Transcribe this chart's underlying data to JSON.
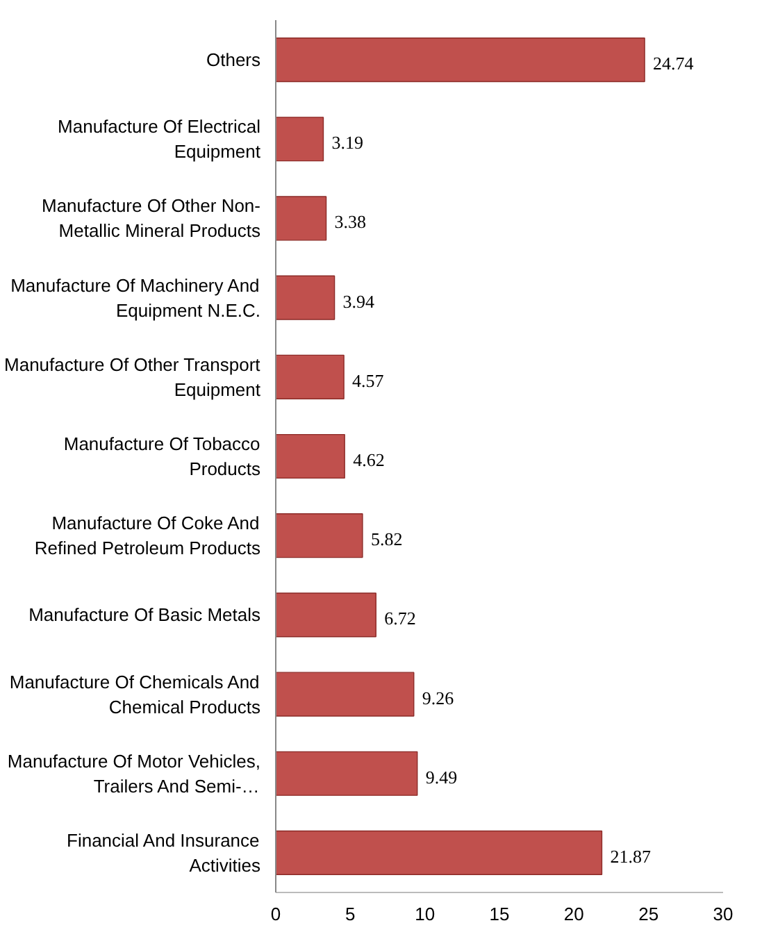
{
  "chart_data": {
    "type": "bar",
    "orientation": "horizontal",
    "categories": [
      "Others",
      "Manufacture Of Electrical Equipment",
      "Manufacture Of Other Non-Metallic Mineral Products",
      "Manufacture Of Machinery And Equipment N.E.C.",
      "Manufacture Of Other Transport Equipment",
      "Manufacture Of Tobacco Products",
      "Manufacture Of Coke And Refined Petroleum Products",
      "Manufacture Of Basic Metals",
      "Manufacture Of Chemicals And Chemical Products",
      "Manufacture Of Motor Vehicles, Trailers And Semi-…",
      "Financial And Insurance Activities"
    ],
    "values": [
      24.74,
      3.19,
      3.38,
      3.94,
      4.57,
      4.62,
      5.82,
      6.72,
      9.26,
      9.49,
      21.87
    ],
    "color": "#c0504d",
    "xlim": [
      0,
      30
    ],
    "xticks": [
      0,
      5,
      10,
      15,
      20,
      25,
      30
    ],
    "grid": false,
    "data_labels": true
  }
}
